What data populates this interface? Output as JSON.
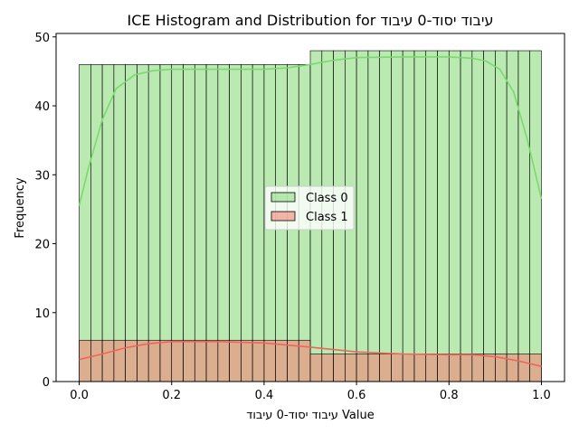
{
  "chart_data": {
    "type": "bar",
    "title": "ICE Histogram and Distribution for עיבוד יסוד-0 עיבוד",
    "xlabel": "עיבוד יסוד-0 עיבוד Value",
    "ylabel": "Frequency",
    "xlim": [
      -0.05,
      1.05
    ],
    "ylim": [
      0,
      50.5
    ],
    "x_ticks": [
      "0.0",
      "0.2",
      "0.4",
      "0.6",
      "0.8",
      "1.0"
    ],
    "x_tick_values": [
      0.0,
      0.2,
      0.4,
      0.6,
      0.8,
      1.0
    ],
    "y_ticks": [
      "0",
      "10",
      "20",
      "30",
      "40",
      "50"
    ],
    "y_tick_values": [
      0,
      10,
      20,
      30,
      40,
      50
    ],
    "bins": {
      "start": 0.0,
      "end": 1.0,
      "count": 40
    },
    "grid": false,
    "legend_position": "center",
    "series": [
      {
        "name": "Class 0",
        "fill": "#90dc83",
        "line": "#7ad96e",
        "segments": [
          {
            "x_start": 0.0,
            "x_end": 0.5,
            "count": 46
          },
          {
            "x_start": 0.5,
            "x_end": 1.0,
            "count": 48
          }
        ],
        "kde": [
          [
            0.0,
            25.5
          ],
          [
            0.02,
            31
          ],
          [
            0.05,
            38
          ],
          [
            0.08,
            42.5
          ],
          [
            0.12,
            44.5
          ],
          [
            0.16,
            45.1
          ],
          [
            0.2,
            45.3
          ],
          [
            0.3,
            45.3
          ],
          [
            0.4,
            45.3
          ],
          [
            0.45,
            45.5
          ],
          [
            0.5,
            46
          ],
          [
            0.55,
            46.6
          ],
          [
            0.6,
            47
          ],
          [
            0.7,
            47.1
          ],
          [
            0.8,
            47.1
          ],
          [
            0.85,
            46.9
          ],
          [
            0.88,
            46.5
          ],
          [
            0.91,
            45.3
          ],
          [
            0.94,
            42
          ],
          [
            0.97,
            35
          ],
          [
            1.0,
            26.5
          ]
        ]
      },
      {
        "name": "Class 1",
        "fill": "#f1897a",
        "line": "#f0645a",
        "segments": [
          {
            "x_start": 0.0,
            "x_end": 0.5,
            "count": 6
          },
          {
            "x_start": 0.5,
            "x_end": 1.0,
            "count": 4
          }
        ],
        "kde": [
          [
            0.0,
            3.2
          ],
          [
            0.05,
            4
          ],
          [
            0.1,
            4.9
          ],
          [
            0.15,
            5.5
          ],
          [
            0.2,
            5.8
          ],
          [
            0.3,
            5.8
          ],
          [
            0.4,
            5.6
          ],
          [
            0.5,
            5.0
          ],
          [
            0.6,
            4.3
          ],
          [
            0.7,
            4.0
          ],
          [
            0.8,
            3.9
          ],
          [
            0.85,
            3.9
          ],
          [
            0.9,
            3.6
          ],
          [
            0.95,
            3.0
          ],
          [
            1.0,
            2.2
          ]
        ]
      }
    ]
  }
}
